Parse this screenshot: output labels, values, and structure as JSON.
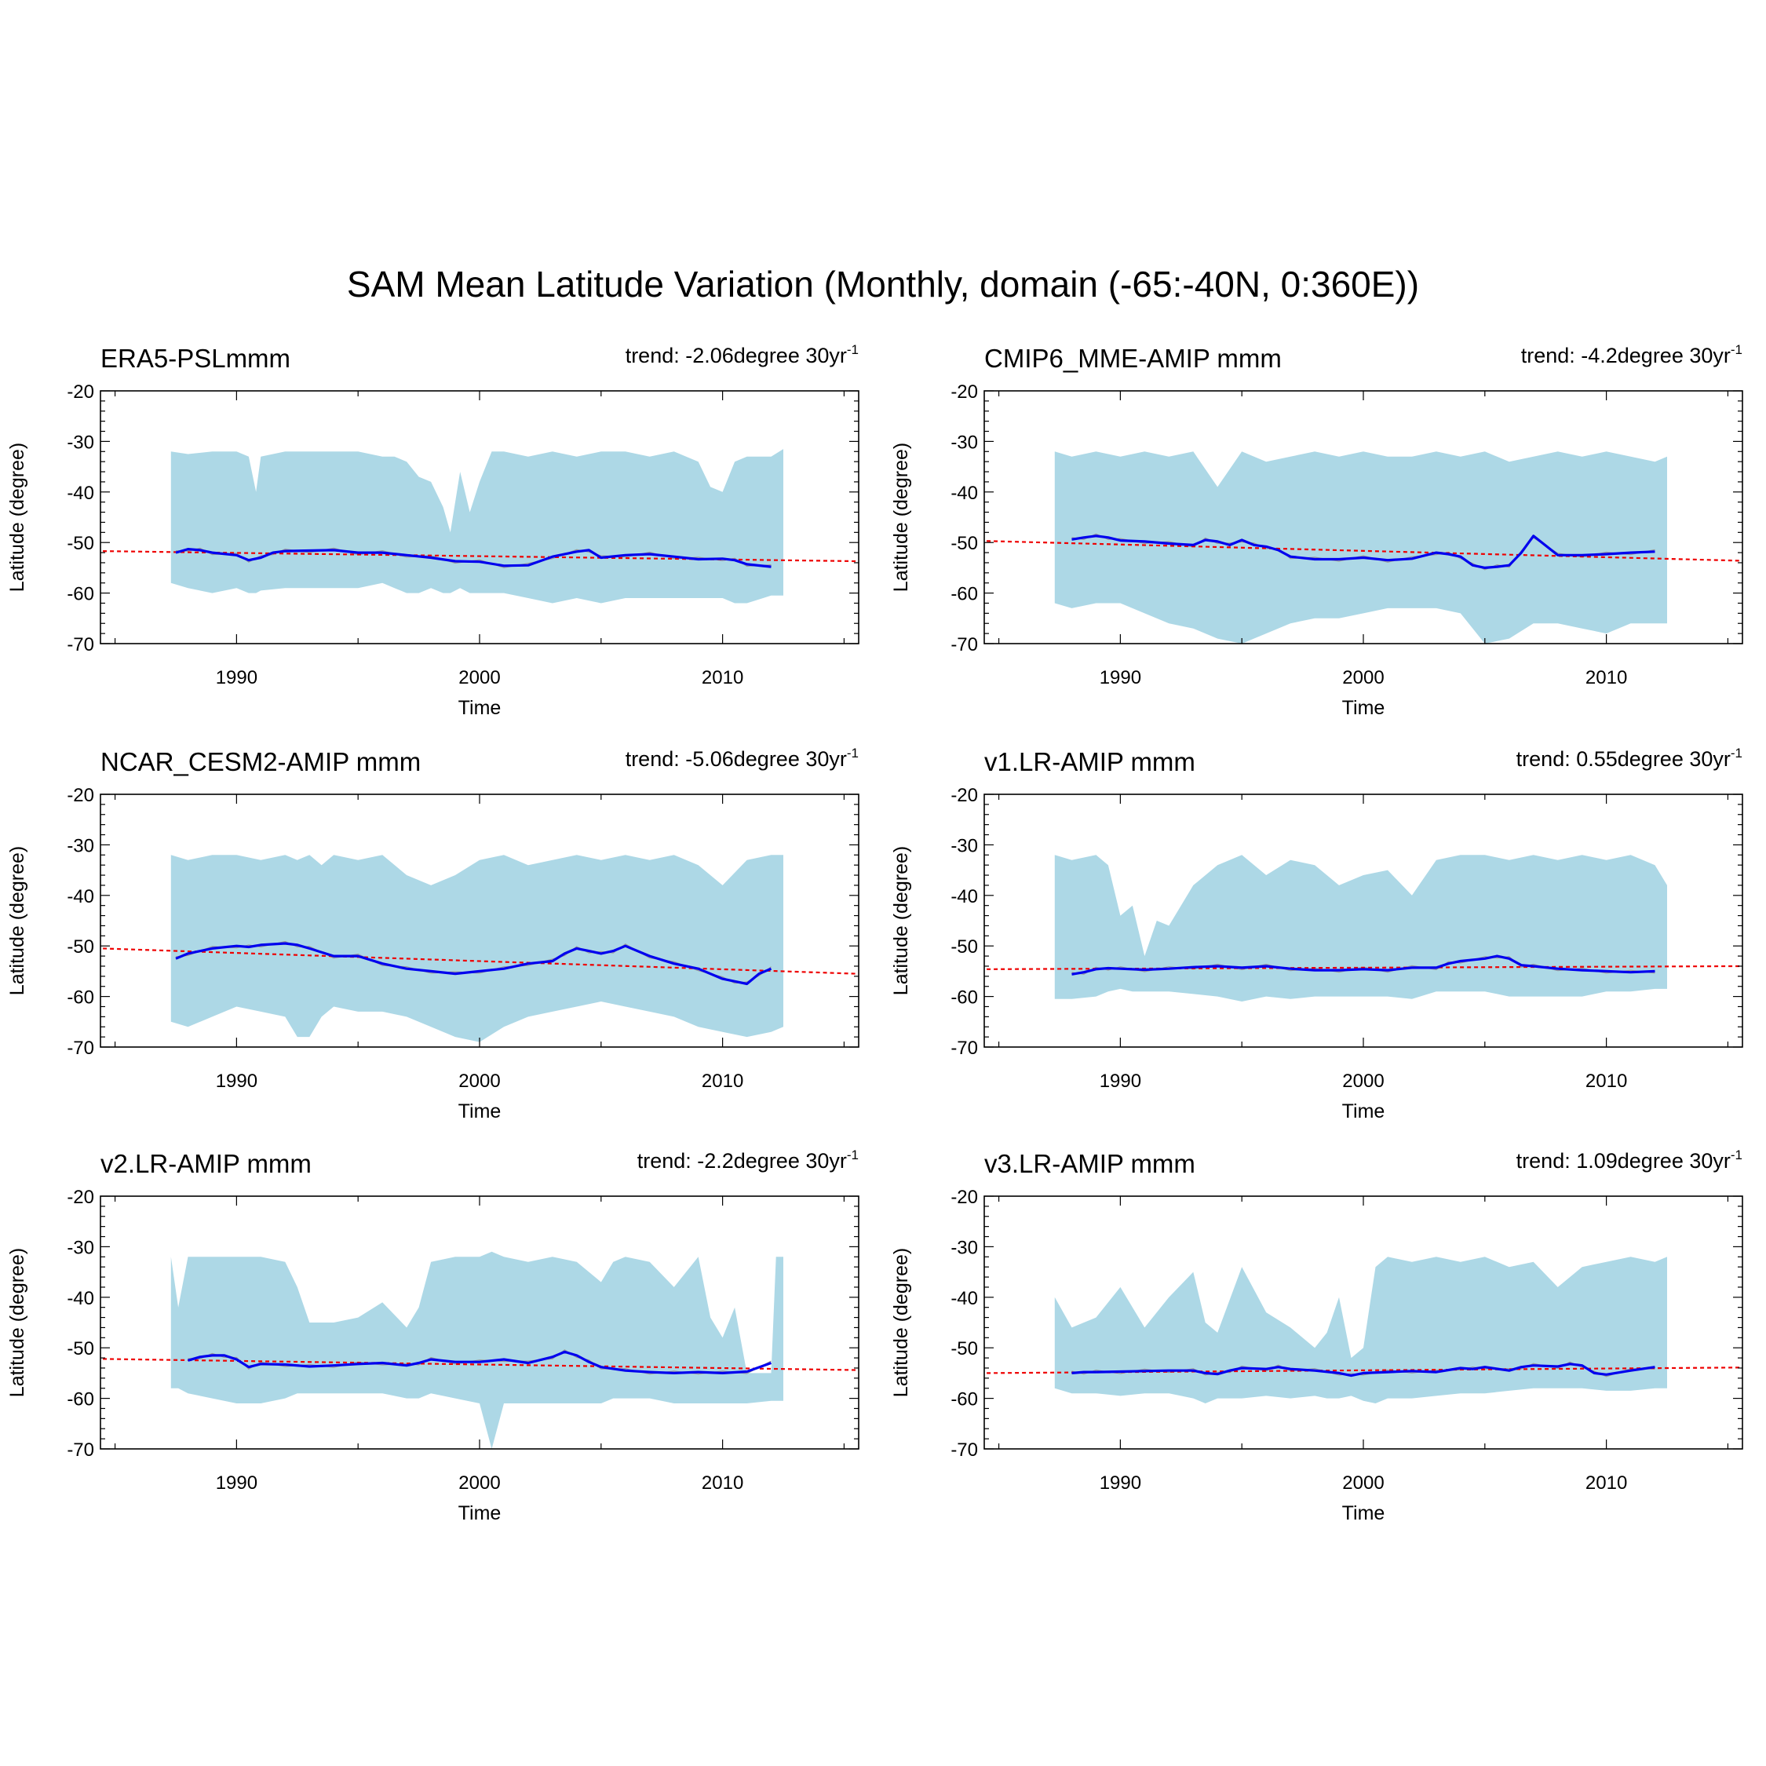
{
  "figure": {
    "title": "SAM Mean Latitude Variation (Monthly, domain (-65:-40N, 0:360E))"
  },
  "axis_defaults": {
    "xlabel": "Time",
    "ylabel": "Latitude (degree)",
    "xlim": [
      1984.4,
      2015.6
    ],
    "ylim": [
      -70,
      -20
    ],
    "xticks": [
      1990,
      2000,
      2010
    ],
    "yticks": [
      -20,
      -30,
      -40,
      -50,
      -60,
      -70
    ]
  },
  "colors": {
    "spread": "#add8e6",
    "mean": "#0000ee",
    "trend": "#ee0000",
    "raw": "#999999"
  },
  "chart_data": [
    {
      "type": "line",
      "title": "ERA5-PSLmmm",
      "trend_prefix": "trend: -2.06degree 30yr",
      "trend_sup": "-1",
      "trend_line": {
        "x": [
          1984.5,
          2015.5
        ],
        "y": [
          -51.7,
          -53.7
        ]
      },
      "spread": {
        "x": [
          1987.3,
          1988,
          1989,
          1990,
          1990.5,
          1990.8,
          1991,
          1992,
          1993,
          1994,
          1995,
          1996,
          1996.5,
          1997,
          1997.5,
          1998,
          1998.5,
          1998.8,
          1999.2,
          1999.6,
          2000,
          2000.5,
          2001,
          2002,
          2003,
          2004,
          2005,
          2006,
          2007,
          2008,
          2009,
          2009.5,
          2010,
          2010.5,
          2011,
          2012,
          2012.5
        ],
        "upper": [
          -32,
          -32.5,
          -32,
          -32,
          -33,
          -40,
          -33,
          -32,
          -32,
          -32,
          -32,
          -33,
          -33,
          -34,
          -37,
          -38,
          -43,
          -48,
          -36,
          -44,
          -38,
          -32,
          -32,
          -33,
          -32,
          -33,
          -32,
          -32,
          -33,
          -32,
          -34,
          -39,
          -40,
          -34,
          -33,
          -33,
          -31.5
        ],
        "lower": [
          -58,
          -59,
          -60,
          -59,
          -60,
          -60,
          -59.5,
          -59,
          -59,
          -59,
          -59,
          -58,
          -59,
          -60,
          -60,
          -59,
          -60,
          -60,
          -59,
          -60,
          -60,
          -60,
          -60,
          -61,
          -62,
          -61,
          -62,
          -61,
          -61,
          -61,
          -61,
          -61,
          -61,
          -62,
          -62,
          -60.5,
          -60.5
        ]
      },
      "mean": {
        "x": [
          1987.5,
          1988,
          1988.5,
          1989,
          1990,
          1990.5,
          1991,
          1991.5,
          1992,
          1993,
          1994,
          1995,
          1996,
          1997,
          1998,
          1999,
          2000,
          2001,
          2002,
          2003,
          2004,
          2004.5,
          2005,
          2006,
          2007,
          2008,
          2009,
          2010,
          2010.5,
          2011,
          2012
        ],
        "y": [
          -52,
          -51.3,
          -51.5,
          -52,
          -52.5,
          -53.5,
          -53,
          -52,
          -51.7,
          -51.6,
          -51.5,
          -52,
          -52,
          -52.5,
          -53,
          -53.7,
          -53.8,
          -54.6,
          -54.5,
          -52.8,
          -51.8,
          -51.5,
          -53,
          -52.5,
          -52.3,
          -52.8,
          -53.3,
          -53.2,
          -53.5,
          -54.3,
          -54.8
        ]
      }
    },
    {
      "type": "line",
      "title": "CMIP6_MME-AMIP  mmm",
      "trend_prefix": "trend: -4.2degree 30yr",
      "trend_sup": "-1",
      "trend_line": {
        "x": [
          1984.5,
          2015.5
        ],
        "y": [
          -49.7,
          -53.6
        ]
      },
      "spread": {
        "x": [
          1987.3,
          1988,
          1989,
          1990,
          1991,
          1992,
          1993,
          1994,
          1995,
          1996,
          1997,
          1998,
          1999,
          2000,
          2001,
          2002,
          2003,
          2004,
          2005,
          2006,
          2007,
          2008,
          2009,
          2010,
          2011,
          2012,
          2012.5
        ],
        "upper": [
          -32,
          -33,
          -32,
          -33,
          -32,
          -33,
          -32,
          -39,
          -32,
          -34,
          -33,
          -32,
          -33,
          -32,
          -33,
          -33,
          -32,
          -33,
          -32,
          -34,
          -33,
          -32,
          -33,
          -32,
          -33,
          -34,
          -33
        ],
        "lower": [
          -62,
          -63,
          -62,
          -62,
          -64,
          -66,
          -67,
          -69,
          -70,
          -68,
          -66,
          -65,
          -65,
          -64,
          -63,
          -63,
          -63,
          -64,
          -70,
          -69,
          -66,
          -66,
          -67,
          -68,
          -66,
          -66,
          -66
        ]
      },
      "mean": {
        "x": [
          1988,
          1988.5,
          1989,
          1989.5,
          1990,
          1991,
          1992,
          1993,
          1993.5,
          1994,
          1994.5,
          1995,
          1995.5,
          1996,
          1996.5,
          1997,
          1998,
          1999,
          2000,
          2001,
          2002,
          2003,
          2003.5,
          2004,
          2004.5,
          2005,
          2005.5,
          2006,
          2006.5,
          2007,
          2008,
          2009,
          2010,
          2011,
          2012
        ],
        "y": [
          -49.4,
          -49,
          -48.7,
          -49,
          -49.6,
          -49.8,
          -50.2,
          -50.5,
          -49.5,
          -49.8,
          -50.5,
          -49.5,
          -50.5,
          -50.8,
          -51.5,
          -52.8,
          -53.3,
          -53.3,
          -53,
          -53.5,
          -53.2,
          -52,
          -52.3,
          -52.8,
          -54.5,
          -55,
          -54.8,
          -54.5,
          -52,
          -48.7,
          -52.5,
          -52.5,
          -52.3,
          -52,
          -51.8
        ]
      }
    },
    {
      "type": "line",
      "title": "NCAR_CESM2-AMIP  mmm",
      "trend_prefix": "trend: -5.06degree 30yr",
      "trend_sup": "-1",
      "trend_line": {
        "x": [
          1984.5,
          2015.5
        ],
        "y": [
          -50.5,
          -55.5
        ]
      },
      "spread": {
        "x": [
          1987.3,
          1988,
          1989,
          1990,
          1991,
          1992,
          1992.5,
          1993,
          1993.5,
          1994,
          1995,
          1996,
          1997,
          1998,
          1999,
          2000,
          2001,
          2002,
          2003,
          2004,
          2005,
          2006,
          2007,
          2008,
          2009,
          2010,
          2011,
          2012,
          2012.5
        ],
        "upper": [
          -32,
          -33,
          -32,
          -32,
          -33,
          -32,
          -33,
          -32,
          -34,
          -32,
          -33,
          -32,
          -36,
          -38,
          -36,
          -33,
          -32,
          -34,
          -33,
          -32,
          -33,
          -32,
          -33,
          -32,
          -34,
          -38,
          -33,
          -32,
          -32
        ],
        "lower": [
          -65,
          -66,
          -64,
          -62,
          -63,
          -64,
          -68,
          -68,
          -64,
          -62,
          -63,
          -63,
          -64,
          -66,
          -68,
          -69,
          -66,
          -64,
          -63,
          -62,
          -61,
          -62,
          -63,
          -64,
          -66,
          -67,
          -68,
          -67,
          -66
        ]
      },
      "mean": {
        "x": [
          1987.5,
          1988,
          1989,
          1990,
          1990.5,
          1991,
          1992,
          1992.5,
          1993,
          1994,
          1995,
          1996,
          1997,
          1998,
          1999,
          2000,
          2001,
          2002,
          2003,
          2003.5,
          2004,
          2004.5,
          2005,
          2005.5,
          2006,
          2007,
          2008,
          2009,
          2010,
          2010.5,
          2011,
          2011.5,
          2012
        ],
        "y": [
          -52.5,
          -51.5,
          -50.5,
          -50,
          -50.2,
          -49.8,
          -49.5,
          -49.8,
          -50.5,
          -52,
          -52,
          -53.5,
          -54.5,
          -55,
          -55.5,
          -55,
          -54.5,
          -53.5,
          -53,
          -51.5,
          -50.5,
          -51,
          -51.5,
          -51,
          -50,
          -52,
          -53.5,
          -54.5,
          -56.5,
          -57,
          -57.5,
          -55.5,
          -54.5
        ]
      }
    },
    {
      "type": "line",
      "title": "v1.LR-AMIP  mmm",
      "trend_prefix": "trend: 0.55degree 30yr",
      "trend_sup": "-1",
      "trend_line": {
        "x": [
          1984.5,
          2015.5
        ],
        "y": [
          -54.6,
          -54.0
        ]
      },
      "spread": {
        "x": [
          1987.3,
          1988,
          1989,
          1989.5,
          1990,
          1990.5,
          1991,
          1991.5,
          1992,
          1993,
          1994,
          1995,
          1996,
          1997,
          1998,
          1999,
          2000,
          2001,
          2002,
          2003,
          2004,
          2005,
          2006,
          2007,
          2008,
          2009,
          2010,
          2011,
          2012,
          2012.5
        ],
        "upper": [
          -32,
          -33,
          -32,
          -34,
          -44,
          -42,
          -52,
          -45,
          -46,
          -38,
          -34,
          -32,
          -36,
          -33,
          -34,
          -38,
          -36,
          -35,
          -40,
          -33,
          -32,
          -32,
          -33,
          -32,
          -33,
          -32,
          -33,
          -32,
          -34,
          -38
        ],
        "lower": [
          -60.5,
          -60.5,
          -60,
          -59,
          -58.5,
          -59,
          -59,
          -59,
          -59,
          -59.5,
          -60,
          -61,
          -60,
          -60.5,
          -60,
          -60,
          -60,
          -60,
          -60.5,
          -59,
          -59,
          -59,
          -60,
          -60,
          -60,
          -60,
          -59,
          -59,
          -58.5,
          -58.5
        ]
      },
      "mean": {
        "x": [
          1988,
          1988.5,
          1989,
          1989.5,
          1990,
          1991,
          1992,
          1993,
          1994,
          1995,
          1996,
          1997,
          1998,
          1999,
          2000,
          2001,
          2002,
          2003,
          2003.5,
          2004,
          2005,
          2005.5,
          2006,
          2006.5,
          2007,
          2008,
          2009,
          2010,
          2011,
          2012
        ],
        "y": [
          -55.6,
          -55.2,
          -54.6,
          -54.4,
          -54.5,
          -54.7,
          -54.5,
          -54.2,
          -54,
          -54.3,
          -54,
          -54.5,
          -54.8,
          -54.8,
          -54.6,
          -54.8,
          -54.3,
          -54.3,
          -53.5,
          -53,
          -52.5,
          -52,
          -52.5,
          -53.8,
          -54,
          -54.5,
          -54.8,
          -55,
          -55.2,
          -55
        ]
      }
    },
    {
      "type": "line",
      "title": "v2.LR-AMIP  mmm",
      "trend_prefix": "trend: -2.2degree 30yr",
      "trend_sup": "-1",
      "trend_line": {
        "x": [
          1984.5,
          2015.5
        ],
        "y": [
          -52.2,
          -54.4
        ]
      },
      "spread": {
        "x": [
          1987.3,
          1987.6,
          1988,
          1989,
          1990,
          1991,
          1992,
          1992.5,
          1993,
          1994,
          1995,
          1996,
          1997,
          1997.5,
          1998,
          1999,
          2000,
          2000.5,
          2001,
          2002,
          2003,
          2004,
          2005,
          2005.5,
          2006,
          2007,
          2008,
          2009,
          2009.5,
          2010,
          2010.5,
          2011,
          2012,
          2012.2,
          2012.5
        ],
        "upper": [
          -32,
          -42,
          -32,
          -32,
          -32,
          -32,
          -33,
          -38,
          -45,
          -45,
          -44,
          -41,
          -46,
          -42,
          -33,
          -32,
          -32,
          -31,
          -32,
          -33,
          -32,
          -33,
          -37,
          -33,
          -32,
          -33,
          -38,
          -32,
          -44,
          -48,
          -42,
          -55,
          -55,
          -32,
          -32
        ],
        "lower": [
          -58,
          -58,
          -59,
          -60,
          -61,
          -61,
          -60,
          -59,
          -59,
          -59,
          -59,
          -59,
          -60,
          -60,
          -59,
          -60,
          -61,
          -70,
          -61,
          -61,
          -61,
          -61,
          -61,
          -60,
          -60,
          -60,
          -61,
          -61,
          -61,
          -61,
          -61,
          -61,
          -60.5,
          -60.5,
          -60.5
        ]
      },
      "mean": {
        "x": [
          1988,
          1988.5,
          1989,
          1989.5,
          1990,
          1990.5,
          1991,
          1992,
          1993,
          1994,
          1995,
          1996,
          1997,
          1997.5,
          1998,
          1999,
          2000,
          2001,
          2002,
          2003,
          2003.5,
          2004,
          2004.5,
          2005,
          2006,
          2007,
          2008,
          2009,
          2010,
          2011,
          2012
        ],
        "y": [
          -52.5,
          -51.8,
          -51.5,
          -51.5,
          -52.3,
          -53.8,
          -53.2,
          -53.3,
          -53.7,
          -53.5,
          -53.2,
          -53,
          -53.5,
          -53,
          -52.3,
          -52.8,
          -52.8,
          -52.3,
          -53,
          -51.8,
          -50.8,
          -51.5,
          -52.8,
          -53.8,
          -54.5,
          -54.8,
          -55,
          -54.8,
          -55,
          -54.7,
          -53
        ]
      }
    },
    {
      "type": "line",
      "title": "v3.LR-AMIP  mmm",
      "trend_prefix": "trend: 1.09degree 30yr",
      "trend_sup": "-1",
      "trend_line": {
        "x": [
          1984.5,
          2015.5
        ],
        "y": [
          -55.0,
          -53.9
        ]
      },
      "spread": {
        "x": [
          1987.3,
          1988,
          1989,
          1990,
          1991,
          1992,
          1993,
          1993.5,
          1994,
          1995,
          1996,
          1997,
          1998,
          1998.5,
          1999,
          1999.5,
          2000,
          2000.5,
          2001,
          2002,
          2003,
          2004,
          2005,
          2006,
          2007,
          2008,
          2009,
          2010,
          2011,
          2012,
          2012.5
        ],
        "upper": [
          -40,
          -46,
          -44,
          -38,
          -46,
          -40,
          -35,
          -45,
          -47,
          -34,
          -43,
          -46,
          -50,
          -47,
          -40,
          -52,
          -50,
          -34,
          -32,
          -33,
          -32,
          -33,
          -32,
          -34,
          -33,
          -38,
          -34,
          -33,
          -32,
          -33,
          -32
        ],
        "lower": [
          -58,
          -59,
          -59,
          -59.5,
          -59,
          -59,
          -60,
          -61,
          -60,
          -60,
          -59.5,
          -60,
          -59.5,
          -60,
          -60,
          -59.5,
          -60.5,
          -61,
          -60,
          -60,
          -59.5,
          -59,
          -59,
          -58.5,
          -58,
          -58,
          -58,
          -58.5,
          -58.5,
          -58,
          -58
        ]
      },
      "mean": {
        "x": [
          1988,
          1988.5,
          1989,
          1990,
          1991,
          1992,
          1993,
          1993.5,
          1994,
          1994.5,
          1995,
          1996,
          1996.5,
          1997,
          1998,
          1999,
          1999.5,
          2000,
          2001,
          2002,
          2003,
          2004,
          2004.5,
          2005,
          2006,
          2006.5,
          2007,
          2008,
          2008.5,
          2009,
          2009.5,
          2010,
          2011,
          2012
        ],
        "y": [
          -55,
          -54.8,
          -54.8,
          -54.7,
          -54.6,
          -54.5,
          -54.5,
          -55,
          -55.2,
          -54.5,
          -54,
          -54.2,
          -53.8,
          -54.2,
          -54.5,
          -55,
          -55.5,
          -55,
          -54.8,
          -54.6,
          -54.8,
          -54,
          -54.2,
          -53.8,
          -54.5,
          -53.8,
          -53.5,
          -53.7,
          -53.2,
          -53.5,
          -55,
          -55.3,
          -54.5,
          -53.8
        ]
      }
    }
  ]
}
